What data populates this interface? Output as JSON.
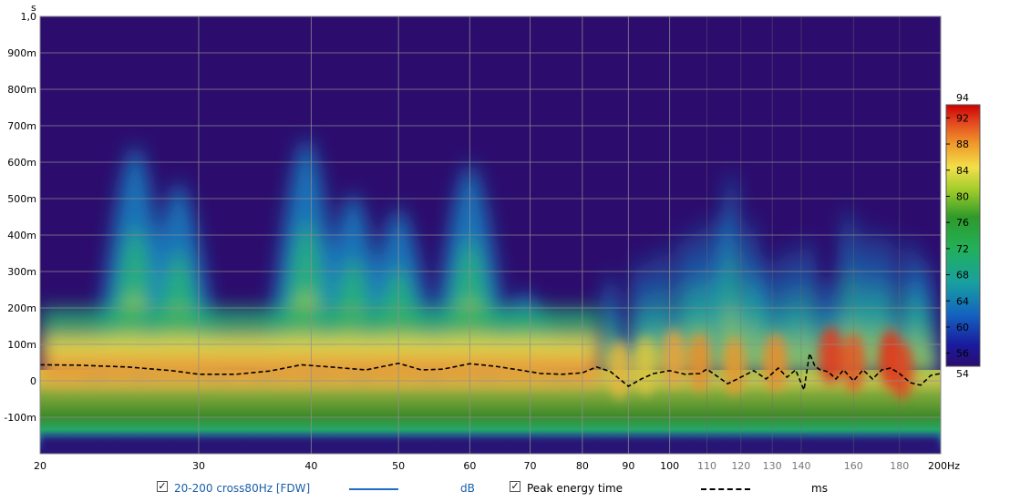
{
  "chart_data": {
    "type": "heatmap",
    "xlabel": "",
    "ylabel": "s",
    "x_unit": "Hz",
    "x_scale": "log",
    "xlim": [
      20,
      200
    ],
    "ylim": [
      -0.2,
      1.0
    ],
    "grid": true,
    "x_ticks": [
      {
        "value": 20,
        "label": "20",
        "major": true
      },
      {
        "value": 30,
        "label": "30",
        "major": true
      },
      {
        "value": 40,
        "label": "40",
        "major": true
      },
      {
        "value": 50,
        "label": "50",
        "major": true
      },
      {
        "value": 60,
        "label": "60",
        "major": true
      },
      {
        "value": 70,
        "label": "70",
        "major": true
      },
      {
        "value": 80,
        "label": "80",
        "major": true
      },
      {
        "value": 90,
        "label": "90",
        "major": true
      },
      {
        "value": 100,
        "label": "100",
        "major": true
      },
      {
        "value": 110,
        "label": "110",
        "major": false
      },
      {
        "value": 120,
        "label": "120",
        "major": false
      },
      {
        "value": 130,
        "label": "130",
        "major": false
      },
      {
        "value": 140,
        "label": "140",
        "major": false
      },
      {
        "value": 160,
        "label": "160",
        "major": false
      },
      {
        "value": 180,
        "label": "180",
        "major": false
      },
      {
        "value": 200,
        "label": "200Hz",
        "major": true
      }
    ],
    "y_ticks": [
      {
        "value": 1.0,
        "label": "1,0"
      },
      {
        "value": 0.9,
        "label": "900m"
      },
      {
        "value": 0.8,
        "label": "800m"
      },
      {
        "value": 0.7,
        "label": "700m"
      },
      {
        "value": 0.6,
        "label": "600m"
      },
      {
        "value": 0.5,
        "label": "500m"
      },
      {
        "value": 0.4,
        "label": "400m"
      },
      {
        "value": 0.3,
        "label": "300m"
      },
      {
        "value": 0.2,
        "label": "200m"
      },
      {
        "value": 0.1,
        "label": "100m"
      },
      {
        "value": 0.0,
        "label": "0"
      },
      {
        "value": -0.1,
        "label": "-100m"
      }
    ],
    "colorbar": {
      "min": 54,
      "max": 94,
      "min_label": "54",
      "max_label": "94",
      "ticks": [
        "92",
        "88",
        "84",
        "80",
        "76",
        "72",
        "68",
        "64",
        "60",
        "56"
      ],
      "tick_values": [
        92,
        88,
        84,
        80,
        76,
        72,
        68,
        64,
        60,
        56
      ]
    },
    "decay_ridges": [
      {
        "f": 25.5,
        "end_s": 0.65
      },
      {
        "f": 28.5,
        "end_s": 0.55
      },
      {
        "f": 39.5,
        "end_s": 0.67
      },
      {
        "f": 44.5,
        "end_s": 0.52
      },
      {
        "f": 50,
        "end_s": 0.48
      },
      {
        "f": 60,
        "end_s": 0.6
      },
      {
        "f": 69,
        "end_s": 0.25
      },
      {
        "f": 86,
        "end_s": 0.3
      },
      {
        "f": 93,
        "end_s": 0.35
      },
      {
        "f": 98,
        "end_s": 0.38
      },
      {
        "f": 104,
        "end_s": 0.42
      },
      {
        "f": 109,
        "end_s": 0.45
      },
      {
        "f": 114,
        "end_s": 0.47
      },
      {
        "f": 117,
        "end_s": 0.58
      },
      {
        "f": 123,
        "end_s": 0.45
      },
      {
        "f": 128,
        "end_s": 0.35
      },
      {
        "f": 135,
        "end_s": 0.38
      },
      {
        "f": 142,
        "end_s": 0.4
      },
      {
        "f": 150,
        "end_s": 0.3
      },
      {
        "f": 158,
        "end_s": 0.48
      },
      {
        "f": 166,
        "end_s": 0.43
      },
      {
        "f": 174,
        "end_s": 0.42
      },
      {
        "f": 185,
        "end_s": 0.4
      },
      {
        "f": 192,
        "end_s": 0.35
      }
    ],
    "series": [
      {
        "name": "Peak energy time",
        "unit": "ms",
        "x": [
          20,
          22,
          25,
          28,
          30,
          33,
          36,
          39,
          42,
          46,
          50,
          53,
          56,
          60,
          64,
          68,
          72,
          76,
          80,
          83,
          86,
          88,
          90,
          93,
          96,
          100,
          104,
          108,
          110,
          113,
          116,
          120,
          124,
          128,
          132,
          135,
          138,
          141,
          143,
          145,
          147,
          150,
          153,
          156,
          160,
          164,
          168,
          172,
          176,
          180,
          185,
          190,
          195,
          200
        ],
        "y": [
          44,
          43,
          38,
          28,
          18,
          18,
          27,
          44,
          38,
          30,
          48,
          30,
          32,
          47,
          40,
          30,
          20,
          18,
          22,
          38,
          25,
          5,
          -15,
          5,
          20,
          28,
          18,
          20,
          32,
          12,
          -8,
          10,
          28,
          5,
          35,
          10,
          30,
          -25,
          75,
          40,
          30,
          25,
          5,
          30,
          0,
          30,
          5,
          30,
          35,
          20,
          -5,
          -12,
          15,
          20
        ]
      }
    ]
  },
  "legend": {
    "items": [
      {
        "label": "20-200 cross80Hz [FDW]",
        "unit": "dB",
        "color": "#1a6fc4",
        "checked": true
      },
      {
        "label": "Peak energy time",
        "unit": "ms",
        "color": "#000000",
        "checked": true
      }
    ]
  }
}
